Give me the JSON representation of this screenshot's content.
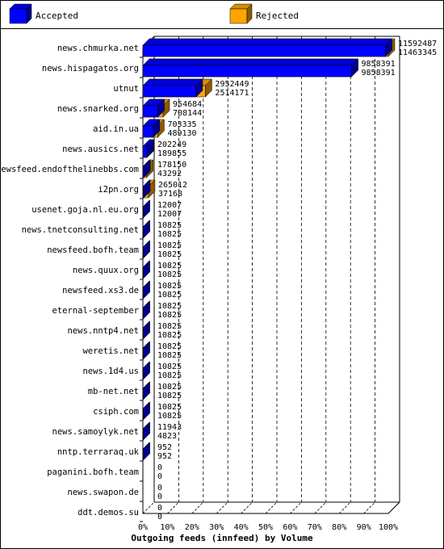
{
  "chart_data": {
    "type": "bar",
    "orientation": "horizontal",
    "title": "",
    "xlabel": "Outgoing feeds (innfeed) by Volume",
    "ylabel": "",
    "x_tick_labels": [
      "0%",
      "10%",
      "20%",
      "30%",
      "40%",
      "50%",
      "60%",
      "70%",
      "80%",
      "90%",
      "100%"
    ],
    "xlim": [
      0,
      11592487
    ],
    "grid": true,
    "legend_position": "top",
    "categories": [
      "news.chmurka.net",
      "news.hispagatos.org",
      "utnut",
      "news.snarked.org",
      "aid.in.ua",
      "news.ausics.net",
      "newsfeed.endofthelinebbs.com",
      "i2pn.org",
      "usenet.goja.nl.eu.org",
      "news.tnetconsulting.net",
      "newsfeed.bofh.team",
      "news.quux.org",
      "newsfeed.xs3.de",
      "eternal-september",
      "news.nntp4.net",
      "weretis.net",
      "news.1d4.us",
      "mb-net.net",
      "csiph.com",
      "news.samoylyk.net",
      "nntp.terraraq.uk",
      "paganini.bofh.team",
      "news.swapon.de",
      "ddt.demos.su"
    ],
    "series": [
      {
        "name": "Accepted",
        "color": "#0000ff",
        "values": [
          11463345,
          9858391,
          2514171,
          708144,
          489130,
          189855,
          43292,
          37168,
          12007,
          10825,
          10825,
          10825,
          10825,
          10825,
          10825,
          10825,
          10825,
          10825,
          10825,
          4823,
          952,
          0,
          0,
          0
        ]
      },
      {
        "name": "Rejected",
        "color": "#ffa500",
        "values": [
          11592487,
          9858391,
          2952449,
          954684,
          703335,
          202249,
          178150,
          265012,
          12007,
          10825,
          10825,
          10825,
          10825,
          10825,
          10825,
          10825,
          10825,
          10825,
          10825,
          11943,
          952,
          0,
          0,
          0
        ]
      }
    ]
  }
}
